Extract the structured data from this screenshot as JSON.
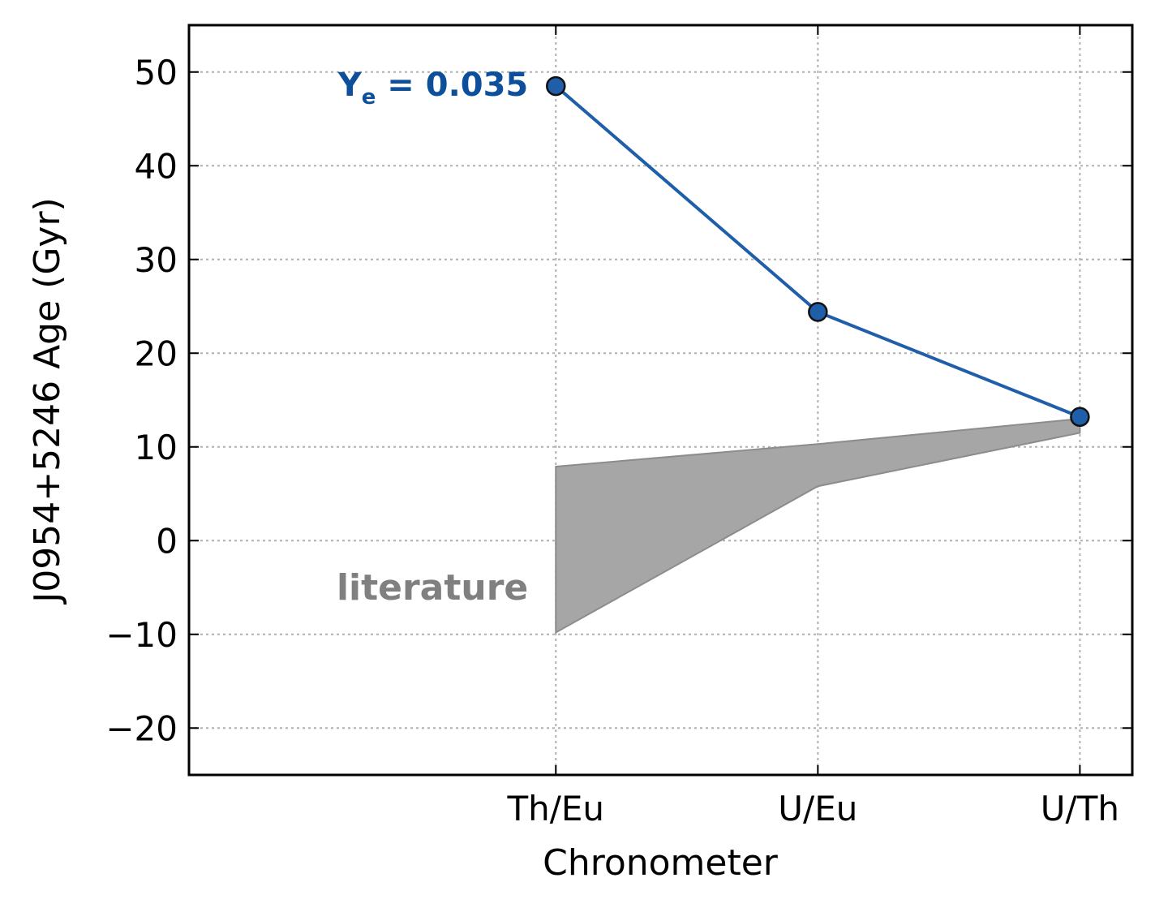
{
  "chart_data": {
    "type": "line",
    "xlabel": "Chronometer",
    "ylabel": "J0954+5246 Age (Gyr)",
    "categories": [
      "Th/Eu",
      "U/Eu",
      "U/Th"
    ],
    "x_range": [
      -1.4,
      2.2
    ],
    "ylim": [
      -25,
      55
    ],
    "yticks": [
      -20,
      -10,
      0,
      10,
      20,
      30,
      40,
      50
    ],
    "ytick_labels": [
      "−20",
      "−10",
      "0",
      "10",
      "20",
      "30",
      "40",
      "50"
    ],
    "grid": true,
    "series": [
      {
        "name": "",
        "values": [
          48.5,
          24.4,
          13.2
        ],
        "color": "#1f5ea8"
      }
    ],
    "band": {
      "label": "literature",
      "upper": [
        7.9,
        10.3,
        13.0
      ],
      "lower": [
        -9.8,
        5.8,
        11.5
      ],
      "color": "#a6a6a6"
    },
    "annotations": {
      "ye_main": "Y",
      "ye_sub": "e",
      "ye_value": " = 0.035",
      "ye_color": "#0d4f9b",
      "literature": "literature",
      "literature_color": "#808080"
    }
  }
}
